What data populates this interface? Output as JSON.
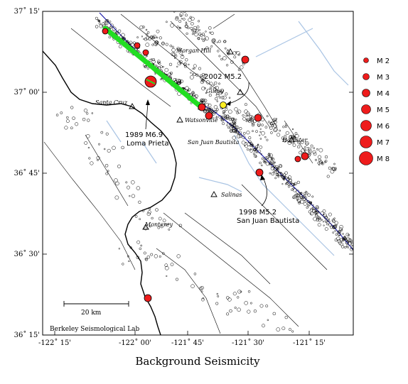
{
  "map": {
    "title": "Background Seismicity",
    "credit": "Berkeley Seismological Lab",
    "scale_bar_label": "20 km",
    "lat_ticks": [
      "37˚ 15'",
      "37˚ 00'",
      "36˚ 45'",
      "36˚ 30'",
      "36˚ 15'"
    ],
    "lon_ticks": [
      "-122˚ 15'",
      "-122˚ 00'",
      "-121˚ 45'",
      "-121˚ 30'",
      "-121˚ 15'"
    ],
    "places": [
      "Morgan Hill",
      "Gilroy",
      "Santa Cruz",
      "Watsonville",
      "San Juan Bautista",
      "Hollister",
      "Salinas",
      "Monterey"
    ],
    "quake_labels": [
      {
        "line1": "2002 M5.2",
        "line2": ""
      },
      {
        "line1": "1989 M6.9",
        "line2": "Loma Prieta"
      },
      {
        "line1": "1998 M5.2",
        "line2": "San Juan Bautista"
      }
    ],
    "colors": {
      "quake_fill": "#ee1c1c",
      "rupture": "#22dd22",
      "recent_quake": "#ffee22",
      "fault_main": "#1a1aaa",
      "river": "#a9c4e4"
    }
  },
  "legend": {
    "entries": [
      "M 2",
      "M 3",
      "M 4",
      "M 5",
      "M 6",
      "M 7",
      "M 8"
    ]
  }
}
